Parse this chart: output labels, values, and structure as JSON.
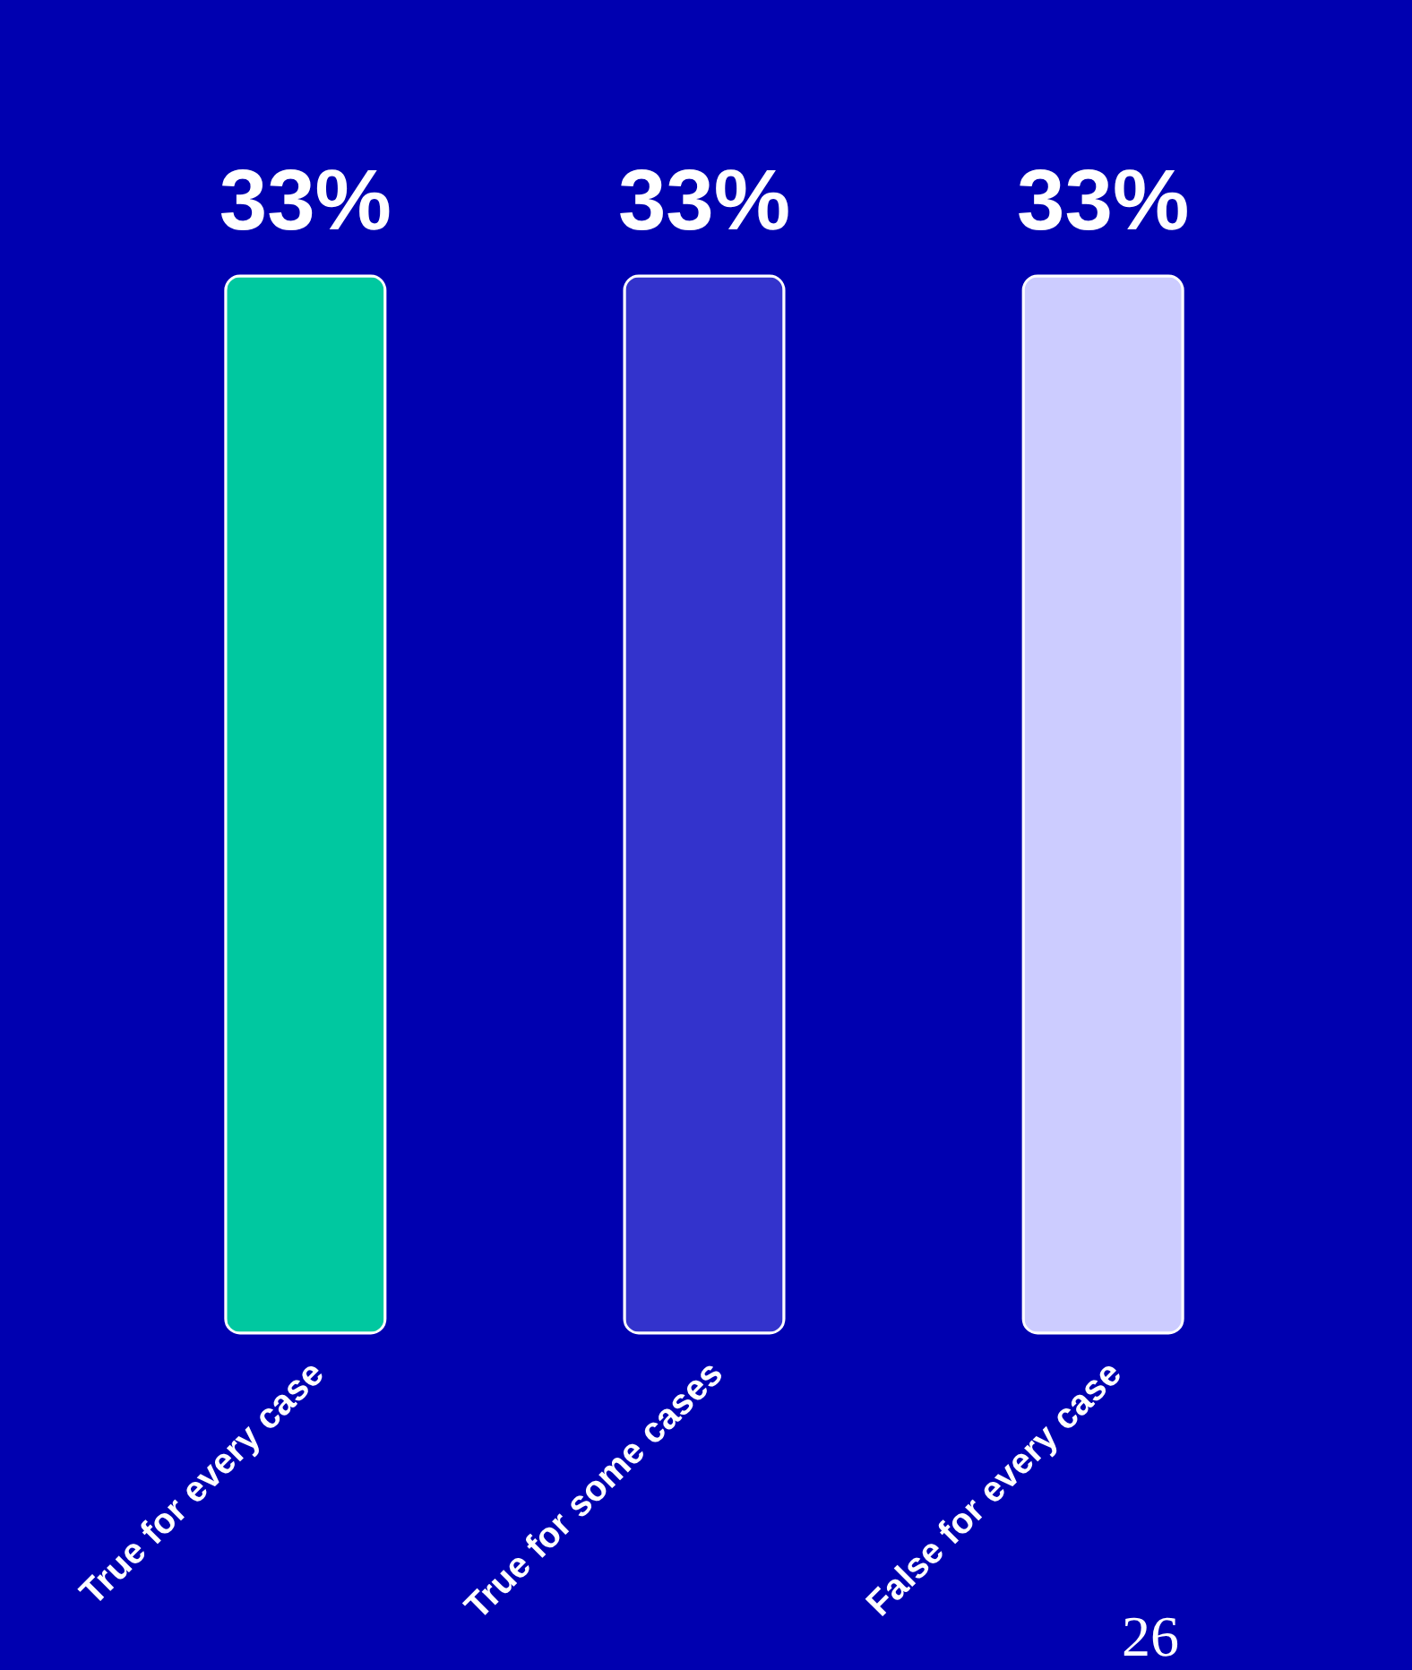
{
  "chart_data": {
    "type": "bar",
    "categories": [
      "True for every case",
      "True for some cases",
      "False for every case"
    ],
    "values": [
      33,
      33,
      33
    ],
    "colors": [
      "#00c8a0",
      "#3333cc",
      "#ccccff"
    ],
    "value_labels": [
      "33%",
      "33%",
      "33%"
    ],
    "annotations": [
      "26"
    ]
  }
}
